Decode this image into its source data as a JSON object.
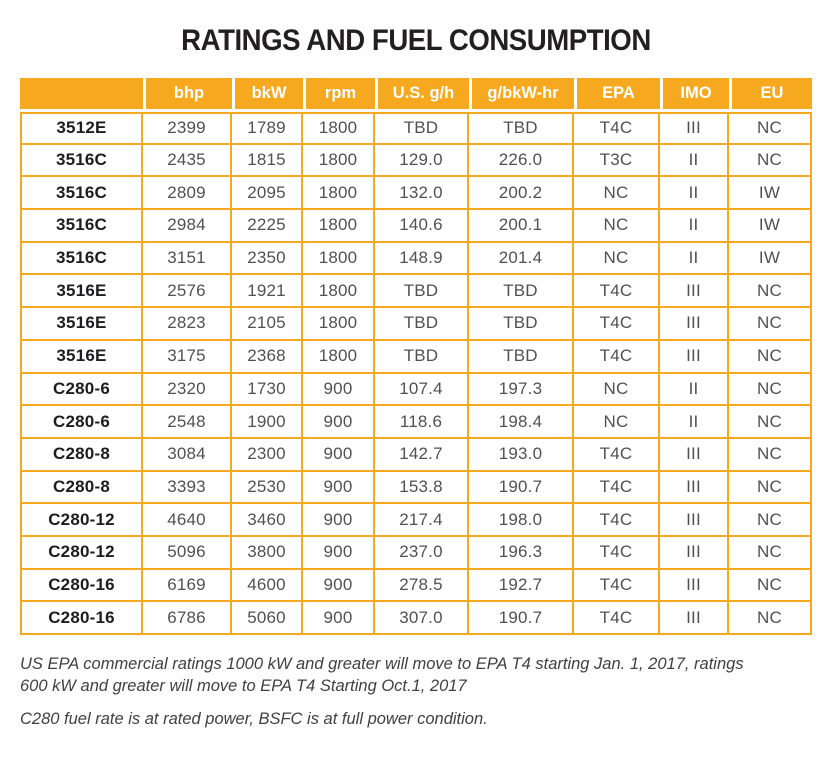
{
  "title": "RATINGS AND FUEL CONSUMPTION",
  "colors": {
    "accent_orange": "#F6A81E",
    "title_black": "#231F20",
    "cell_text_gray": "#515155",
    "footnote_gray": "#414042"
  },
  "table": {
    "columns": [
      "",
      "bhp",
      "bkW",
      "rpm",
      "U.S. g/h",
      "g/bkW-hr",
      "EPA",
      "IMO",
      "EU"
    ],
    "rows": [
      [
        "3512E",
        "2399",
        "1789",
        "1800",
        "TBD",
        "TBD",
        "T4C",
        "III",
        "NC"
      ],
      [
        "3516C",
        "2435",
        "1815",
        "1800",
        "129.0",
        "226.0",
        "T3C",
        "II",
        "NC"
      ],
      [
        "3516C",
        "2809",
        "2095",
        "1800",
        "132.0",
        "200.2",
        "NC",
        "II",
        "IW"
      ],
      [
        "3516C",
        "2984",
        "2225",
        "1800",
        "140.6",
        "200.1",
        "NC",
        "II",
        "IW"
      ],
      [
        "3516C",
        "3151",
        "2350",
        "1800",
        "148.9",
        "201.4",
        "NC",
        "II",
        "IW"
      ],
      [
        "3516E",
        "2576",
        "1921",
        "1800",
        "TBD",
        "TBD",
        "T4C",
        "III",
        "NC"
      ],
      [
        "3516E",
        "2823",
        "2105",
        "1800",
        "TBD",
        "TBD",
        "T4C",
        "III",
        "NC"
      ],
      [
        "3516E",
        "3175",
        "2368",
        "1800",
        "TBD",
        "TBD",
        "T4C",
        "III",
        "NC"
      ],
      [
        "C280-6",
        "2320",
        "1730",
        "900",
        "107.4",
        "197.3",
        "NC",
        "II",
        "NC"
      ],
      [
        "C280-6",
        "2548",
        "1900",
        "900",
        "118.6",
        "198.4",
        "NC",
        "II",
        "NC"
      ],
      [
        "C280-8",
        "3084",
        "2300",
        "900",
        "142.7",
        "193.0",
        "T4C",
        "III",
        "NC"
      ],
      [
        "C280-8",
        "3393",
        "2530",
        "900",
        "153.8",
        "190.7",
        "T4C",
        "III",
        "NC"
      ],
      [
        "C280-12",
        "4640",
        "3460",
        "900",
        "217.4",
        "198.0",
        "T4C",
        "III",
        "NC"
      ],
      [
        "C280-12",
        "5096",
        "3800",
        "900",
        "237.0",
        "196.3",
        "T4C",
        "III",
        "NC"
      ],
      [
        "C280-16",
        "6169",
        "4600",
        "900",
        "278.5",
        "192.7",
        "T4C",
        "III",
        "NC"
      ],
      [
        "C280-16",
        "6786",
        "5060",
        "900",
        "307.0",
        "190.7",
        "T4C",
        "III",
        "NC"
      ]
    ]
  },
  "footnotes": [
    {
      "lines": [
        "US EPA commercial ratings 1000 kW and greater will move to EPA T4 starting Jan. 1, 2017, ratings",
        "600 kW and greater will move to EPA T4 Starting Oct.1, 2017"
      ]
    },
    {
      "lines": [
        "C280 fuel rate is at rated power, BSFC is at full power condition."
      ]
    }
  ]
}
